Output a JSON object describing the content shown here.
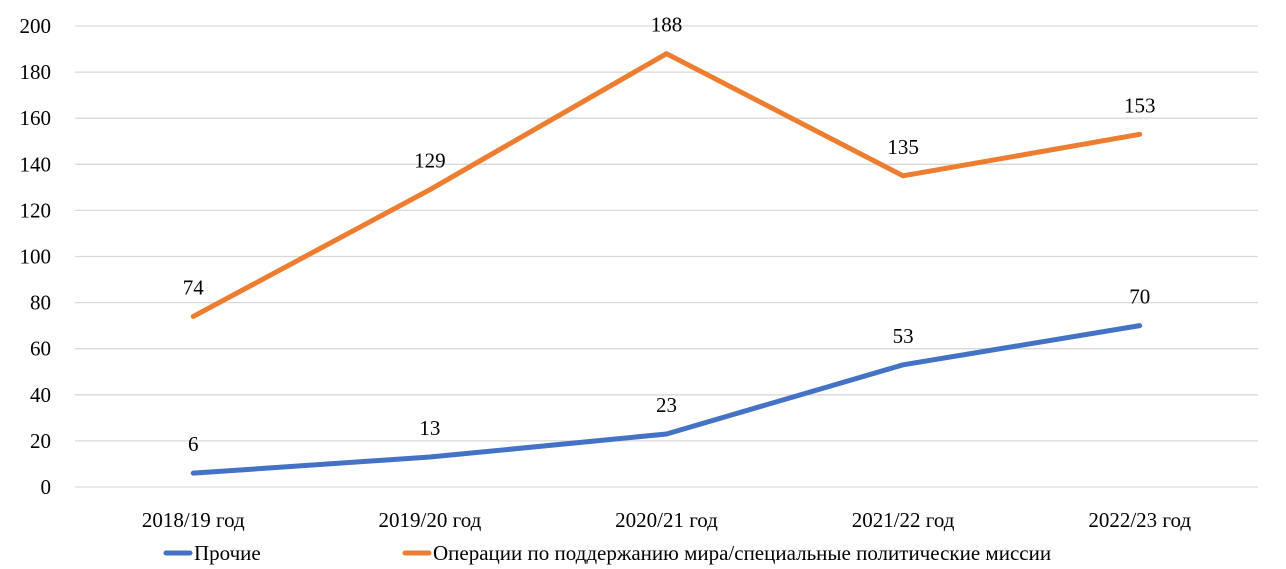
{
  "chart_data": {
    "type": "line",
    "categories": [
      "2018/19 год",
      "2019/20 год",
      "2020/21 год",
      "2021/22 год",
      "2022/23 год"
    ],
    "series": [
      {
        "name": "Прочие",
        "values": [
          6,
          13,
          23,
          53,
          70
        ],
        "color": "#4472C4"
      },
      {
        "name": "Операции по поддержанию мира/специальные политические миссии",
        "values": [
          74,
          129,
          188,
          135,
          153
        ],
        "color": "#ED7D31"
      }
    ],
    "ylim": [
      0,
      200
    ],
    "yticks": [
      0,
      20,
      40,
      60,
      80,
      100,
      120,
      140,
      160,
      180,
      200
    ],
    "grid": true,
    "legend": "bottom",
    "data_labels": true
  }
}
